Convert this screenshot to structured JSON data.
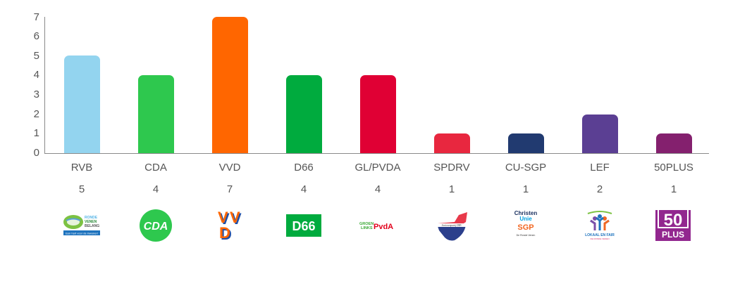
{
  "chart_data": {
    "type": "bar",
    "title": "",
    "xlabel": "",
    "ylabel": "",
    "ylim": [
      0,
      7
    ],
    "yticks": [
      "0",
      "1",
      "2",
      "3",
      "4",
      "5",
      "6",
      "7"
    ],
    "grid": false,
    "legend": null,
    "categories": [
      "RVB",
      "CDA",
      "VVD",
      "D66",
      "GL/PVDA",
      "SPDRV",
      "CU-SGP",
      "LEF",
      "50PLUS"
    ],
    "values": [
      5,
      4,
      7,
      4,
      4,
      1,
      1,
      2,
      1
    ],
    "value_labels": [
      "5",
      "4",
      "7",
      "4",
      "4",
      "1",
      "1",
      "2",
      "1"
    ],
    "colors": [
      "#93d4ef",
      "#2ec84e",
      "#ff6600",
      "#00ab3e",
      "#e00034",
      "#e8273f",
      "#213a70",
      "#5b3f93",
      "#84206e"
    ]
  },
  "logos": [
    {
      "party": "RVB",
      "icon": "ronde-venen-belang-logo",
      "lines": [
        "RONDE",
        "VENEN",
        "BELANG"
      ],
      "tagline": "Een hart voor de inwoner!"
    },
    {
      "party": "CDA",
      "icon": "cda-logo",
      "text": "CDA"
    },
    {
      "party": "VVD",
      "icon": "vvd-logo",
      "text": "VVD"
    },
    {
      "party": "D66",
      "icon": "d66-logo",
      "text": "D66"
    },
    {
      "party": "GL/PVDA",
      "icon": "groenlinks-pvda-logo",
      "lines": [
        "GROEN",
        "LINKS"
      ],
      "text": "PvdA"
    },
    {
      "party": "SPDRV",
      "icon": "seniorenpartij-drv-logo",
      "text": "Seniorenpartij DRV"
    },
    {
      "party": "CU-SGP",
      "icon": "christenunie-sgp-logo",
      "lines": [
        "Christen",
        "Unie",
        "SGP"
      ],
      "tagline": "De Ronde Venen"
    },
    {
      "party": "LEF",
      "icon": "lokaal-en-fair-logo",
      "text": "LOKAAL EN FAIR",
      "tagline": "DE RONDE VENEN"
    },
    {
      "party": "50PLUS",
      "icon": "50plus-logo",
      "lines": [
        "50",
        "PLUS"
      ]
    }
  ]
}
